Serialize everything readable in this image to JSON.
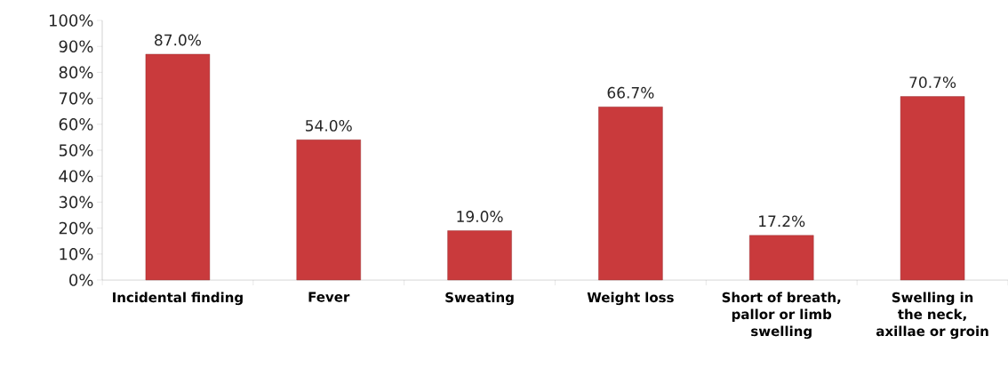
{
  "chart_data": {
    "type": "bar",
    "categories": [
      "Incidental finding",
      "Fever",
      "Sweating",
      "Weight loss",
      "Short of breath, pallor or limb swelling",
      "Swelling in the neck, axillae or groin"
    ],
    "values": [
      87.0,
      54.0,
      19.0,
      66.7,
      17.2,
      70.7
    ],
    "value_labels": [
      "87.0%",
      "54.0%",
      "19.0%",
      "66.7%",
      "17.2%",
      "70.7%"
    ],
    "color": "#c93a3c",
    "ylim": [
      0,
      100
    ],
    "yticks": [
      {
        "value": 0,
        "label": "0%"
      },
      {
        "value": 10,
        "label": "10%"
      },
      {
        "value": 20,
        "label": "20%"
      },
      {
        "value": 30,
        "label": "30%"
      },
      {
        "value": 40,
        "label": "40%"
      },
      {
        "value": 50,
        "label": "50%"
      },
      {
        "value": 60,
        "label": "60%"
      },
      {
        "value": 70,
        "label": "70%"
      },
      {
        "value": 80,
        "label": "80%"
      },
      {
        "value": 90,
        "label": "90%"
      },
      {
        "value": 100,
        "label": "100%"
      }
    ],
    "grid": false
  }
}
